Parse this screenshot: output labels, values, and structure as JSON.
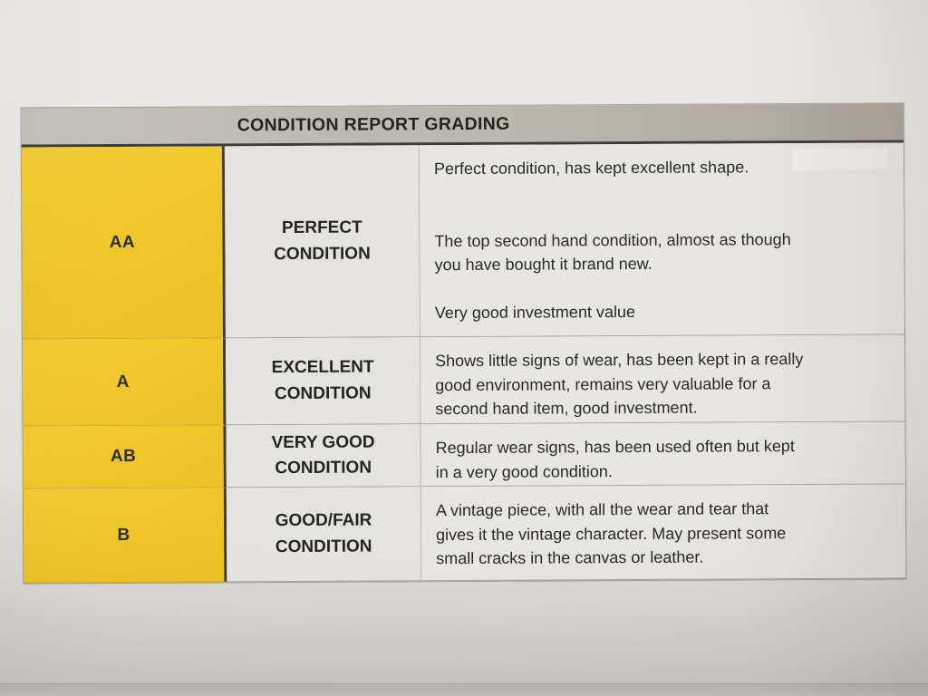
{
  "document": {
    "title": "CONDITION REPORT GRADING",
    "rows": [
      {
        "grade": "AA",
        "label_line1": "PERFECT",
        "label_line2": "CONDITION",
        "desc": [
          "Perfect condition, has kept excellent shape.",
          "The top second hand condition, almost as though\nyou have bought it brand new.",
          "Very good investment value"
        ]
      },
      {
        "grade": "A",
        "label_line1": "EXCELLENT",
        "label_line2": "CONDITION",
        "desc": [
          "Shows little signs of wear, has been kept in a really\ngood environment, remains very valuable for a\nsecond hand item, good investment."
        ]
      },
      {
        "grade": "AB",
        "label_line1": "VERY GOOD",
        "label_line2": "CONDITION",
        "desc": [
          "Regular wear signs, has been used often but kept\nin a very good condition."
        ]
      },
      {
        "grade": "B",
        "label_line1": "GOOD/FAIR",
        "label_line2": "CONDITION",
        "desc": [
          "A vintage piece, with all the wear and tear that\ngives it the vintage character. May present some\nsmall cracks in the canvas or leather."
        ]
      }
    ]
  },
  "colors": {
    "grade_yellow": "#eec31e",
    "header_gray": "#bab5ad",
    "cell_gray": "#e6e4e1",
    "text": "#1b1b19",
    "dark_border": "#33322e"
  }
}
